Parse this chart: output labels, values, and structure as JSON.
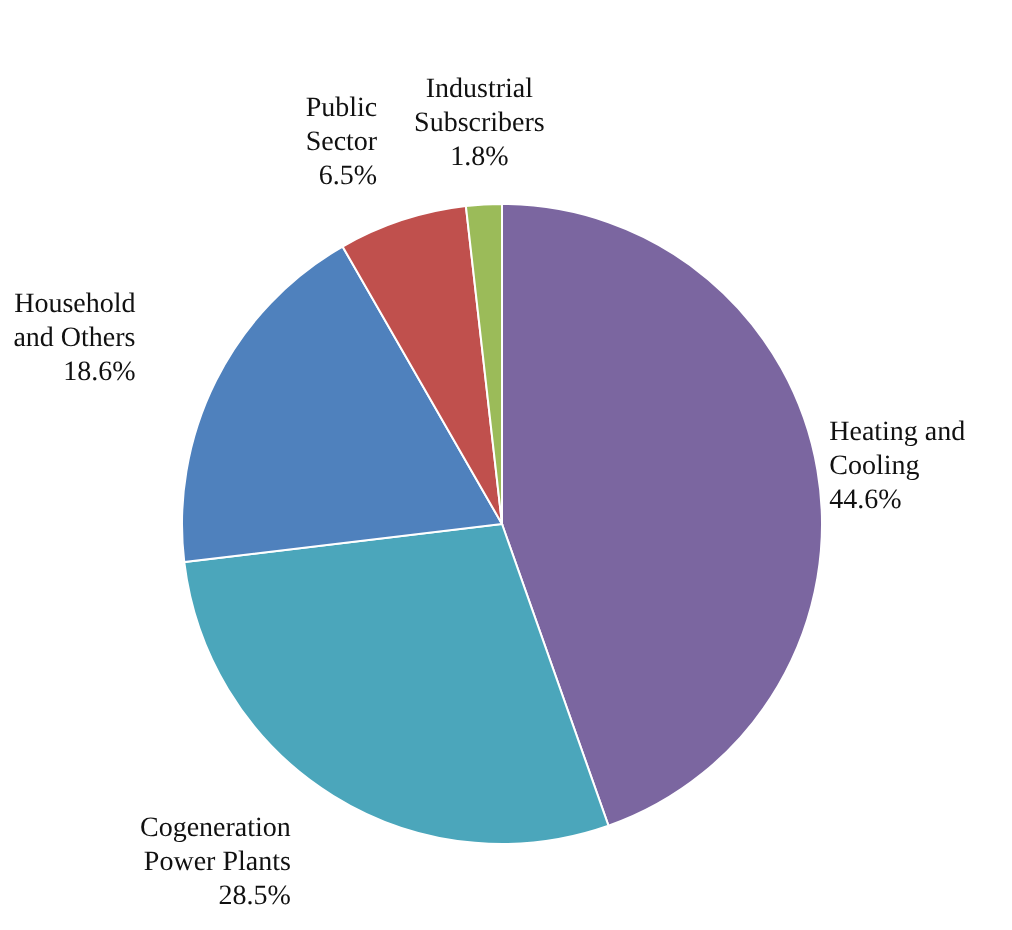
{
  "chart_data": {
    "type": "pie",
    "categories": [
      "Heating and\nCooling",
      "Cogeneration\nPower Plants",
      "Household\nand Others",
      "Public\nSector",
      "Industrial\nSubscribers"
    ],
    "values": [
      44.6,
      28.5,
      18.6,
      6.5,
      1.8
    ],
    "value_labels": [
      "44.6%",
      "28.5%",
      "18.6%",
      "6.5%",
      "1.8%"
    ],
    "colors": [
      "#7b66a0",
      "#4ba6bb",
      "#4f81bd",
      "#c0504d",
      "#9bbb59"
    ]
  }
}
